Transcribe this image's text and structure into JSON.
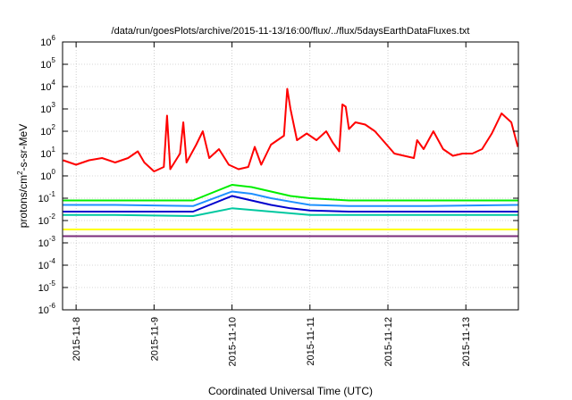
{
  "chart_data": {
    "type": "line",
    "title": "/data/run/goesPlots/archive/2015-11-13/16:00/flux/../flux/5daysEarthDataFluxes.txt",
    "xlabel": "Coordinated Universal Time (UTC)",
    "ylabel_base": "protons/cm",
    "ylabel_sup": "2",
    "ylabel_rest": "-s-sr-MeV",
    "yscale": "log",
    "ylim_exp": [
      -6,
      6
    ],
    "y_ticks": [
      {
        "exp": -6,
        "label_base": "10",
        "label_exp": "-6"
      },
      {
        "exp": -5,
        "label_base": "10",
        "label_exp": "-5"
      },
      {
        "exp": -4,
        "label_base": "10",
        "label_exp": "-4"
      },
      {
        "exp": -3,
        "label_base": "10",
        "label_exp": "-3"
      },
      {
        "exp": -2,
        "label_base": "10",
        "label_exp": "-2"
      },
      {
        "exp": -1,
        "label_base": "10",
        "label_exp": "-1"
      },
      {
        "exp": 0,
        "label_base": "10",
        "label_exp": "0"
      },
      {
        "exp": 1,
        "label_base": "10",
        "label_exp": "1"
      },
      {
        "exp": 2,
        "label_base": "10",
        "label_exp": "2"
      },
      {
        "exp": 3,
        "label_base": "10",
        "label_exp": "3"
      },
      {
        "exp": 4,
        "label_base": "10",
        "label_exp": "4"
      },
      {
        "exp": 5,
        "label_base": "10",
        "label_exp": "5"
      },
      {
        "exp": 6,
        "label_base": "10",
        "label_exp": "6"
      }
    ],
    "x_range_days": [
      "2015-11-07 19:50",
      "2015-11-13 16:10"
    ],
    "x_ticks": [
      "2015-11-8",
      "2015-11-9",
      "2015-11-10",
      "2015-11-11",
      "2015-11-12",
      "2015-11-13"
    ],
    "grid": true,
    "series": [
      {
        "color": "#ff0000",
        "points": [
          [
            "2015-11-07 20:00",
            0.7
          ],
          [
            "2015-11-08 00:00",
            0.5
          ],
          [
            "2015-11-08 04:00",
            0.7
          ],
          [
            "2015-11-08 08:00",
            0.8
          ],
          [
            "2015-11-08 12:00",
            0.6
          ],
          [
            "2015-11-08 16:00",
            0.8
          ],
          [
            "2015-11-08 19:00",
            1.1
          ],
          [
            "2015-11-08 21:00",
            0.6
          ],
          [
            "2015-11-09 00:00",
            0.2
          ],
          [
            "2015-11-09 03:00",
            0.4
          ],
          [
            "2015-11-09 04:00",
            2.7
          ],
          [
            "2015-11-09 05:00",
            0.3
          ],
          [
            "2015-11-09 08:00",
            1.0
          ],
          [
            "2015-11-09 09:00",
            2.4
          ],
          [
            "2015-11-09 10:00",
            0.6
          ],
          [
            "2015-11-09 13:00",
            1.4
          ],
          [
            "2015-11-09 15:00",
            2.0
          ],
          [
            "2015-11-09 17:00",
            0.8
          ],
          [
            "2015-11-09 20:00",
            1.2
          ],
          [
            "2015-11-09 23:00",
            0.5
          ],
          [
            "2015-11-10 02:00",
            0.3
          ],
          [
            "2015-11-10 05:00",
            0.4
          ],
          [
            "2015-11-10 07:00",
            1.3
          ],
          [
            "2015-11-10 09:00",
            0.5
          ],
          [
            "2015-11-10 12:00",
            1.4
          ],
          [
            "2015-11-10 16:00",
            1.8
          ],
          [
            "2015-11-10 17:00",
            3.9
          ],
          [
            "2015-11-10 18:00",
            3.0
          ],
          [
            "2015-11-10 20:00",
            1.6
          ],
          [
            "2015-11-10 23:00",
            1.9
          ],
          [
            "2015-11-11 02:00",
            1.6
          ],
          [
            "2015-11-11 05:00",
            2.0
          ],
          [
            "2015-11-11 07:00",
            1.5
          ],
          [
            "2015-11-11 09:00",
            1.1
          ],
          [
            "2015-11-11 10:00",
            3.2
          ],
          [
            "2015-11-11 11:00",
            3.1
          ],
          [
            "2015-11-11 12:00",
            2.1
          ],
          [
            "2015-11-11 14:00",
            2.4
          ],
          [
            "2015-11-11 17:00",
            2.3
          ],
          [
            "2015-11-11 20:00",
            2.0
          ],
          [
            "2015-11-11 23:00",
            1.5
          ],
          [
            "2015-11-12 02:00",
            1.0
          ],
          [
            "2015-11-12 05:00",
            0.9
          ],
          [
            "2015-11-12 08:00",
            0.8
          ],
          [
            "2015-11-12 09:00",
            1.6
          ],
          [
            "2015-11-12 11:00",
            1.2
          ],
          [
            "2015-11-12 14:00",
            2.0
          ],
          [
            "2015-11-12 17:00",
            1.2
          ],
          [
            "2015-11-12 20:00",
            0.9
          ],
          [
            "2015-11-12 23:00",
            1.0
          ],
          [
            "2015-11-13 02:00",
            1.0
          ],
          [
            "2015-11-13 05:00",
            1.2
          ],
          [
            "2015-11-13 08:00",
            1.9
          ],
          [
            "2015-11-13 11:00",
            2.8
          ],
          [
            "2015-11-13 14:00",
            2.4
          ],
          [
            "2015-11-13 16:00",
            1.3
          ]
        ]
      },
      {
        "color": "#00ee00",
        "points": [
          [
            "2015-11-07 20:00",
            -1.1
          ],
          [
            "2015-11-08 12:00",
            -1.1
          ],
          [
            "2015-11-09 12:00",
            -1.1
          ],
          [
            "2015-11-10 00:00",
            -0.4
          ],
          [
            "2015-11-10 06:00",
            -0.5
          ],
          [
            "2015-11-10 12:00",
            -0.7
          ],
          [
            "2015-11-10 18:00",
            -0.9
          ],
          [
            "2015-11-11 00:00",
            -1.0
          ],
          [
            "2015-11-11 12:00",
            -1.1
          ],
          [
            "2015-11-12 12:00",
            -1.1
          ],
          [
            "2015-11-13 16:00",
            -1.1
          ]
        ]
      },
      {
        "color": "#1e90ff",
        "points": [
          [
            "2015-11-07 20:00",
            -1.3
          ],
          [
            "2015-11-08 12:00",
            -1.3
          ],
          [
            "2015-11-09 12:00",
            -1.35
          ],
          [
            "2015-11-10 00:00",
            -0.7
          ],
          [
            "2015-11-10 06:00",
            -0.8
          ],
          [
            "2015-11-10 12:00",
            -1.0
          ],
          [
            "2015-11-10 18:00",
            -1.15
          ],
          [
            "2015-11-11 00:00",
            -1.3
          ],
          [
            "2015-11-11 12:00",
            -1.35
          ],
          [
            "2015-11-12 12:00",
            -1.35
          ],
          [
            "2015-11-13 16:00",
            -1.3
          ]
        ]
      },
      {
        "color": "#0000cd",
        "points": [
          [
            "2015-11-07 20:00",
            -1.6
          ],
          [
            "2015-11-08 12:00",
            -1.6
          ],
          [
            "2015-11-09 12:00",
            -1.6
          ],
          [
            "2015-11-10 00:00",
            -0.9
          ],
          [
            "2015-11-10 06:00",
            -1.1
          ],
          [
            "2015-11-10 12:00",
            -1.3
          ],
          [
            "2015-11-10 18:00",
            -1.45
          ],
          [
            "2015-11-11 00:00",
            -1.55
          ],
          [
            "2015-11-11 12:00",
            -1.6
          ],
          [
            "2015-11-12 12:00",
            -1.6
          ],
          [
            "2015-11-13 16:00",
            -1.6
          ]
        ]
      },
      {
        "color": "#00c8a0",
        "points": [
          [
            "2015-11-07 20:00",
            -1.75
          ],
          [
            "2015-11-08 12:00",
            -1.75
          ],
          [
            "2015-11-09 12:00",
            -1.8
          ],
          [
            "2015-11-10 00:00",
            -1.45
          ],
          [
            "2015-11-10 12:00",
            -1.6
          ],
          [
            "2015-11-11 00:00",
            -1.75
          ],
          [
            "2015-11-12 12:00",
            -1.75
          ],
          [
            "2015-11-13 16:00",
            -1.75
          ]
        ]
      },
      {
        "color": "#ffff00",
        "points": [
          [
            "2015-11-07 20:00",
            -2.4
          ],
          [
            "2015-11-13 16:00",
            -2.4
          ]
        ]
      },
      {
        "color": "#7b2d7b",
        "points": [
          [
            "2015-11-07 20:00",
            -2.7
          ],
          [
            "2015-11-13 16:00",
            -2.7
          ]
        ]
      }
    ]
  }
}
